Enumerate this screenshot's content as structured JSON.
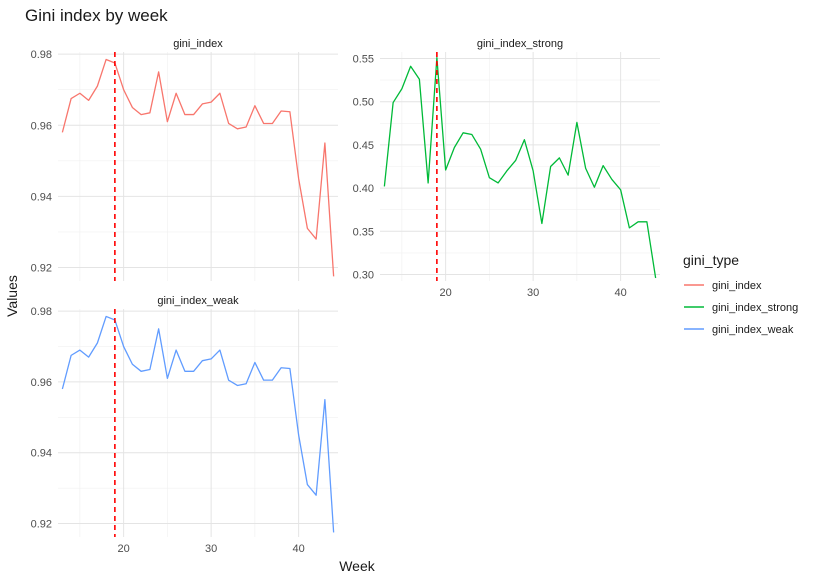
{
  "chart_data": {
    "type": "line",
    "title": "Gini index by week",
    "xlabel": "Week",
    "ylabel": "Values",
    "legend": {
      "title": "gini_type",
      "placement": "right",
      "entries": [
        {
          "label": "gini_index",
          "color": "#F8766D"
        },
        {
          "label": "gini_index_strong",
          "color": "#00BA38"
        },
        {
          "label": "gini_index_weak",
          "color": "#619CFF"
        }
      ]
    },
    "vline": {
      "x": 19,
      "color": "#FF0000",
      "style": "dashed"
    },
    "grid": true,
    "xlim": [
      12.5,
      44.5
    ],
    "x_ticks": [
      20,
      30,
      40
    ],
    "x": [
      13,
      14,
      15,
      16,
      17,
      18,
      19,
      20,
      21,
      22,
      23,
      24,
      25,
      26,
      27,
      28,
      29,
      30,
      31,
      32,
      33,
      34,
      35,
      36,
      37,
      38,
      39,
      40,
      41,
      42,
      43,
      44
    ],
    "panels": [
      {
        "strip": "gini_index",
        "series": "gini_index",
        "ylim": [
          0.9162,
          0.9806
        ],
        "y_ticks": [
          0.92,
          0.94,
          0.96,
          0.98
        ],
        "values": [
          0.958,
          0.9675,
          0.969,
          0.967,
          0.971,
          0.9785,
          0.9775,
          0.97,
          0.965,
          0.963,
          0.9635,
          0.975,
          0.961,
          0.969,
          0.963,
          0.963,
          0.966,
          0.9665,
          0.969,
          0.9605,
          0.959,
          0.9595,
          0.9655,
          0.9605,
          0.9605,
          0.964,
          0.9638,
          0.945,
          0.931,
          0.928,
          0.955,
          0.9175
        ]
      },
      {
        "strip": "gini_index_strong",
        "series": "gini_index_strong",
        "ylim": [
          0.2925,
          0.5575
        ],
        "y_ticks": [
          0.3,
          0.35,
          0.4,
          0.45,
          0.5,
          0.55
        ],
        "values": [
          0.402,
          0.499,
          0.515,
          0.541,
          0.526,
          0.406,
          0.551,
          0.421,
          0.447,
          0.464,
          0.462,
          0.445,
          0.412,
          0.406,
          0.42,
          0.432,
          0.456,
          0.42,
          0.359,
          0.425,
          0.435,
          0.415,
          0.476,
          0.423,
          0.401,
          0.426,
          0.41,
          0.398,
          0.354,
          0.361,
          0.361,
          0.296
        ]
      },
      {
        "strip": "gini_index_weak",
        "series": "gini_index_weak",
        "ylim": [
          0.9162,
          0.9806
        ],
        "y_ticks": [
          0.92,
          0.94,
          0.96,
          0.98
        ],
        "values": [
          0.958,
          0.9675,
          0.969,
          0.967,
          0.971,
          0.9785,
          0.9775,
          0.97,
          0.965,
          0.963,
          0.9635,
          0.975,
          0.961,
          0.969,
          0.963,
          0.963,
          0.966,
          0.9665,
          0.969,
          0.9605,
          0.959,
          0.9595,
          0.9655,
          0.9605,
          0.9605,
          0.964,
          0.9638,
          0.945,
          0.931,
          0.928,
          0.955,
          0.9175
        ]
      }
    ]
  }
}
